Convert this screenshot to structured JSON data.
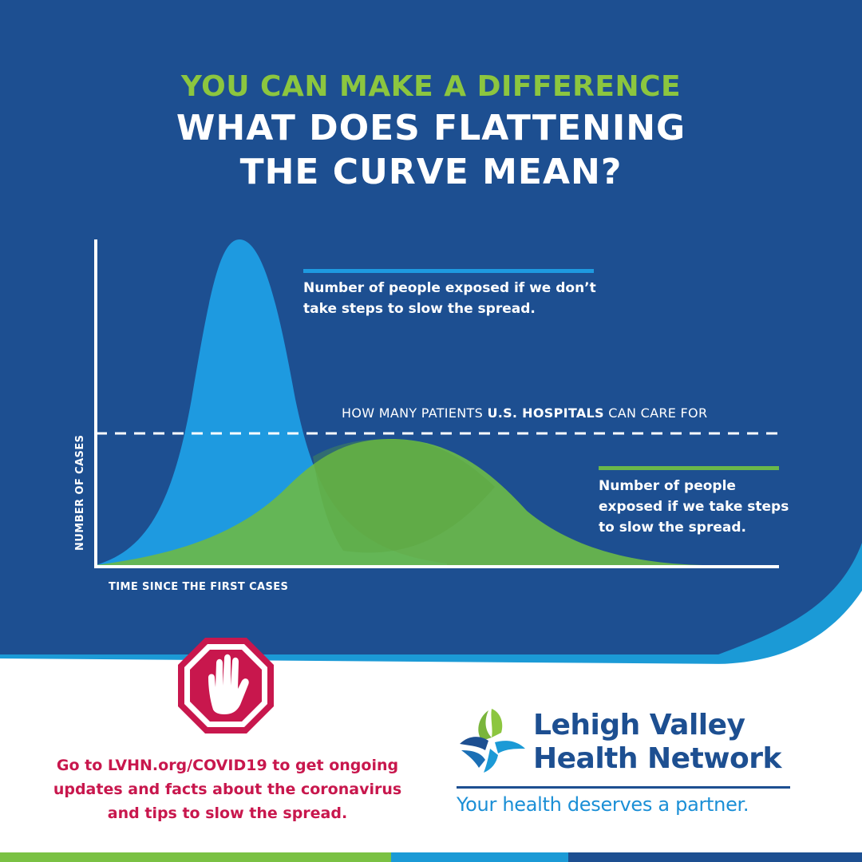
{
  "header": {
    "kicker": "YOU CAN MAKE A DIFFERENCE",
    "title_line1": "WHAT DOES FLATTENING",
    "title_line2": "THE CURVE MEAN?"
  },
  "chart": {
    "blue_legend": "Number of people exposed if we don’t take steps to slow the spread.",
    "green_legend": "Number of people exposed if we take steps to slow the spread.",
    "capacity_prefix": "HOW MANY PATIENTS",
    "capacity_bold": "U.S. HOSPITALS",
    "capacity_suffix": "CAN CARE FOR",
    "xlabel": "TIME SINCE THE FIRST CASES",
    "ylabel": "NUMBER OF CASES"
  },
  "cta": {
    "text": "Go to LVHN.org/COVID19 to get ongoing updates and facts about the coronavirus and tips to slow the spread."
  },
  "brand": {
    "name_line1": "Lehigh Valley",
    "name_line2": "Health Network",
    "tagline": "Your health deserves a partner."
  },
  "colors": {
    "navy": "#1d4f91",
    "blue_curve": "#1e9ae0",
    "green_curve": "#6ab84a",
    "kicker_green": "#8cc63f",
    "cta_red": "#c8174d"
  },
  "icons": {
    "stop_sign": "stop-hand-icon",
    "logo": "lvhn-logo-icon"
  }
}
